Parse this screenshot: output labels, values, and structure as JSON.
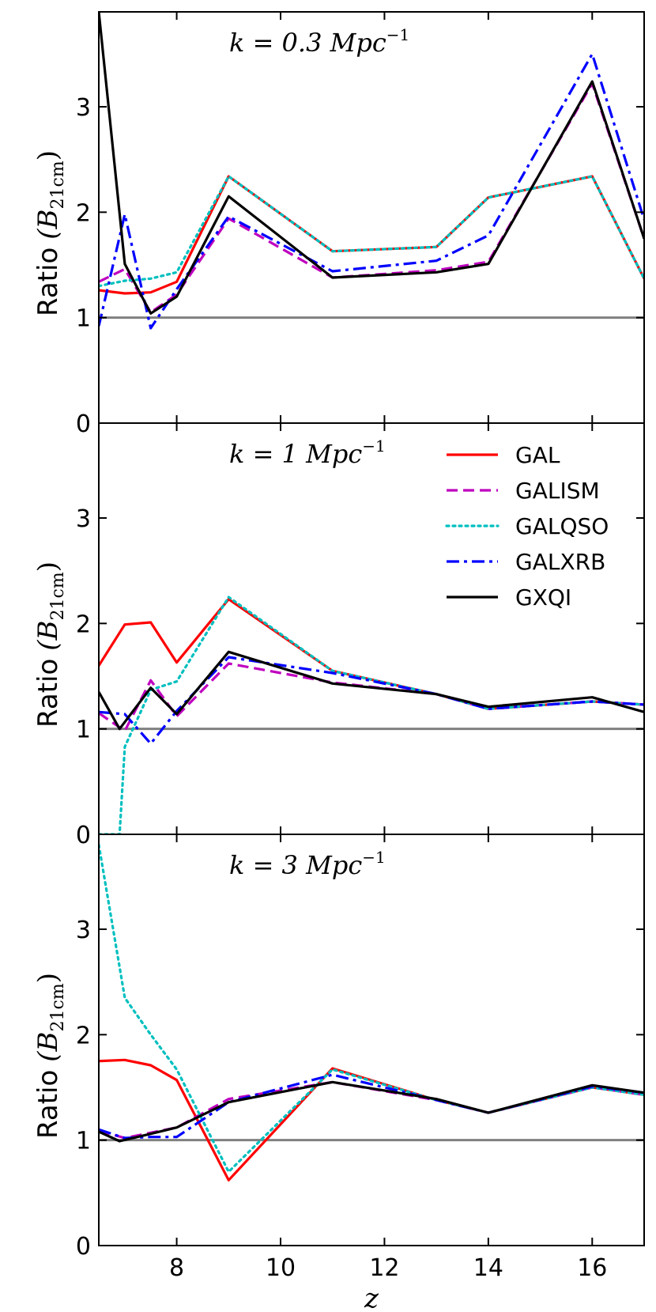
{
  "chart_data": {
    "type": "line",
    "xlabel": "z",
    "xlim": [
      6.5,
      17
    ],
    "xticks": [
      8,
      10,
      12,
      14,
      16
    ],
    "ylim": [
      0,
      3.9
    ],
    "yticks": [
      0,
      1,
      2,
      3
    ],
    "reference_line": 1,
    "legend": {
      "location": "panel-2 top-right",
      "entries": [
        "GAL",
        "GALISM",
        "GALQSO",
        "GALXRB",
        "GXQI"
      ]
    },
    "series_styles": [
      {
        "name": "GAL",
        "color": "#ff0000",
        "dash": "solid"
      },
      {
        "name": "GALISM",
        "color": "#bf00bf",
        "dash": "dashed"
      },
      {
        "name": "GALQSO",
        "color": "#00bfbf",
        "dash": "dotted"
      },
      {
        "name": "GALXRB",
        "color": "#0000ff",
        "dash": "dashdot"
      },
      {
        "name": "GXQI",
        "color": "#000000",
        "dash": "solid"
      }
    ],
    "panels": [
      {
        "title": "k = 0.3 Mpc",
        "title_sup": "−1",
        "ylabel": "Ratio",
        "ylabel_math": "(B",
        "ylabel_sub": "21cm",
        "ylabel_close": ")",
        "series": [
          {
            "name": "GAL",
            "x": [
              6.5,
              7,
              7.5,
              8,
              9,
              11,
              13,
              14,
              16,
              17
            ],
            "y": [
              1.26,
              1.23,
              1.24,
              1.34,
              2.34,
              1.63,
              1.67,
              2.14,
              2.34,
              1.37
            ]
          },
          {
            "name": "GALISM",
            "x": [
              6.5,
              7,
              7.5,
              8,
              9,
              11,
              13,
              14,
              16,
              17
            ],
            "y": [
              1.34,
              1.46,
              1.05,
              1.22,
              1.94,
              1.38,
              1.45,
              1.53,
              3.22,
              1.75
            ]
          },
          {
            "name": "GALQSO",
            "x": [
              6.5,
              7,
              7.5,
              8,
              9,
              11,
              13,
              14,
              16,
              17
            ],
            "y": [
              1.3,
              1.35,
              1.37,
              1.43,
              2.34,
              1.63,
              1.67,
              2.14,
              2.34,
              1.37
            ]
          },
          {
            "name": "GALXRB",
            "x": [
              6.5,
              7,
              7.5,
              8,
              9,
              11,
              13,
              14,
              16,
              17
            ],
            "y": [
              0.92,
              1.98,
              0.9,
              1.27,
              1.96,
              1.44,
              1.54,
              1.78,
              3.5,
              1.93
            ]
          },
          {
            "name": "GXQI",
            "x": [
              6.5,
              7,
              7.5,
              8,
              9,
              11,
              13,
              14,
              16,
              17
            ],
            "y": [
              3.9,
              1.51,
              1.04,
              1.2,
              2.15,
              1.38,
              1.43,
              1.51,
              3.24,
              1.75
            ]
          }
        ]
      },
      {
        "title": "k = 1 Mpc",
        "title_sup": "−1",
        "ylabel": "Ratio",
        "ylabel_math": "(B",
        "ylabel_sub": "21cm",
        "ylabel_close": ")",
        "series": [
          {
            "name": "GAL",
            "x": [
              6.5,
              7,
              7.5,
              8,
              9,
              11,
              13,
              14,
              16,
              17
            ],
            "y": [
              1.6,
              1.99,
              2.01,
              1.63,
              2.23,
              1.55,
              1.33,
              1.19,
              1.26,
              1.23
            ]
          },
          {
            "name": "GALISM",
            "x": [
              6.5,
              7,
              7.5,
              8,
              9,
              11,
              13,
              14,
              16,
              17
            ],
            "y": [
              1.15,
              0.98,
              1.46,
              1.12,
              1.62,
              1.44,
              1.33,
              1.19,
              1.26,
              1.23
            ]
          },
          {
            "name": "GALQSO",
            "x": [
              6.5,
              6.9,
              7,
              7.5,
              8,
              9,
              11,
              13,
              14,
              16,
              17
            ],
            "y": [
              0.0,
              0.0,
              0.83,
              1.37,
              1.45,
              2.25,
              1.55,
              1.33,
              1.19,
              1.26,
              1.23
            ]
          },
          {
            "name": "GALXRB",
            "x": [
              6.5,
              7,
              7.5,
              8,
              9,
              11,
              13,
              14,
              16,
              17
            ],
            "y": [
              1.16,
              1.14,
              0.86,
              1.17,
              1.68,
              1.53,
              1.33,
              1.19,
              1.26,
              1.23
            ]
          },
          {
            "name": "GXQI",
            "x": [
              6.5,
              6.9,
              7.5,
              8,
              9,
              11,
              13,
              14,
              16,
              17
            ],
            "y": [
              1.35,
              1.0,
              1.39,
              1.14,
              1.73,
              1.43,
              1.33,
              1.21,
              1.3,
              1.16
            ]
          }
        ]
      },
      {
        "title": "k = 3 Mpc",
        "title_sup": "−1",
        "ylabel": "Ratio",
        "ylabel_math": "(B",
        "ylabel_sub": "21cm",
        "ylabel_close": ")",
        "series": [
          {
            "name": "GAL",
            "x": [
              6.5,
              7,
              7.5,
              8,
              9,
              11,
              13,
              14,
              16,
              17
            ],
            "y": [
              1.75,
              1.76,
              1.71,
              1.57,
              0.62,
              1.68,
              1.38,
              1.26,
              1.5,
              1.43
            ]
          },
          {
            "name": "GALISM",
            "x": [
              6.5,
              7,
              7.5,
              8,
              9,
              11,
              13,
              14,
              16,
              17
            ],
            "y": [
              1.09,
              1.02,
              1.07,
              1.12,
              1.39,
              1.55,
              1.38,
              1.26,
              1.5,
              1.43
            ]
          },
          {
            "name": "GALQSO",
            "x": [
              6.5,
              7,
              7.5,
              8,
              9,
              11,
              13,
              14,
              16,
              17
            ],
            "y": [
              3.8,
              2.35,
              2.0,
              1.67,
              0.7,
              1.67,
              1.38,
              1.26,
              1.5,
              1.43
            ]
          },
          {
            "name": "GALXRB",
            "x": [
              6.5,
              7,
              7.5,
              8,
              9,
              11,
              13,
              14,
              16,
              17
            ],
            "y": [
              1.1,
              1.02,
              1.03,
              1.03,
              1.36,
              1.62,
              1.38,
              1.26,
              1.51,
              1.45
            ]
          },
          {
            "name": "GXQI",
            "x": [
              6.5,
              6.9,
              7.5,
              8,
              9,
              11,
              13,
              14,
              16,
              17
            ],
            "y": [
              1.08,
              0.99,
              1.06,
              1.12,
              1.36,
              1.55,
              1.39,
              1.26,
              1.52,
              1.45
            ]
          }
        ]
      }
    ]
  }
}
